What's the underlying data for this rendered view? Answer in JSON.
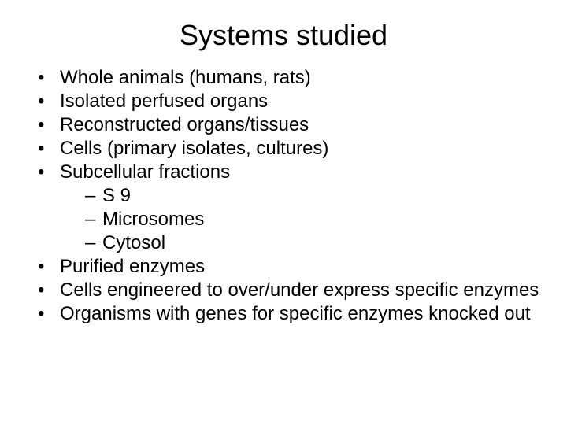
{
  "title": "Systems studied",
  "typography": {
    "title_fontsize": 36,
    "body_fontsize": 24,
    "font_family": "Arial",
    "text_color": "#000000",
    "background_color": "#ffffff"
  },
  "items": [
    {
      "text": "Whole animals (humans, rats)",
      "subitems": []
    },
    {
      "text": "Isolated perfused organs",
      "subitems": []
    },
    {
      "text": "Reconstructed organs/tissues",
      "subitems": []
    },
    {
      "text": "Cells (primary isolates, cultures)",
      "subitems": []
    },
    {
      "text": "Subcellular fractions",
      "subitems": [
        {
          "text": "S 9"
        },
        {
          "text": "Microsomes"
        },
        {
          "text": "Cytosol"
        }
      ]
    },
    {
      "text": "Purified enzymes",
      "subitems": []
    },
    {
      "text": "Cells engineered to over/under express specific enzymes",
      "subitems": []
    },
    {
      "text": "Organisms with genes for specific enzymes knocked out",
      "subitems": []
    }
  ],
  "bullet_glyph": "•",
  "dash_glyph": "–"
}
